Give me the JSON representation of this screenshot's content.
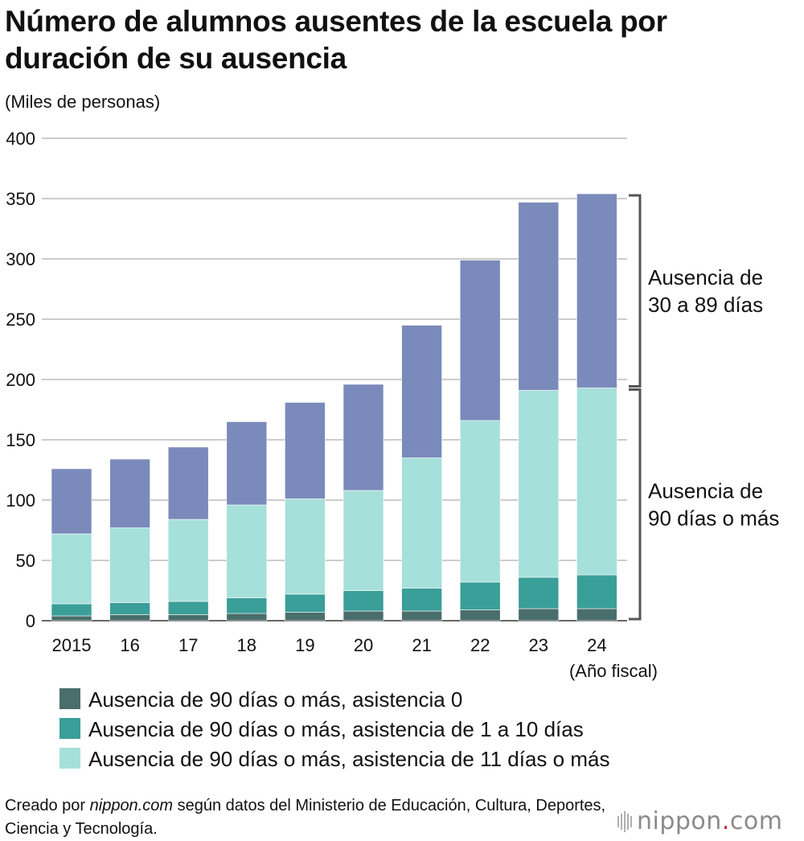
{
  "title": "Número de alumnos ausentes de la escuela por duración de su ausencia",
  "unit_label": "(Miles de personas)",
  "fiscal_year_note": "(Año fiscal)",
  "bracket_labels": {
    "upper": [
      "Ausencia de",
      "30 a 89 días"
    ],
    "lower": [
      "Ausencia de",
      "90 días o más"
    ]
  },
  "source": {
    "prefix": "Creado por",
    "brand": "nippon.com",
    "rest": "según datos del Ministerio de Educación, Cultura, Deportes, Ciencia y Tecnología."
  },
  "logo": {
    "name": "nippon",
    "dot": ".",
    "tld": "com"
  },
  "colors": {
    "zero_attendance": "#4a6e6b",
    "attendance_1_10": "#3a9e99",
    "attendance_11_plus": "#a6e0da",
    "absence_30_89": "#7a8aba",
    "grid": "#cccccc",
    "bracket": "#555555"
  },
  "chart_data": {
    "type": "bar",
    "stacked": true,
    "title": "Número de alumnos ausentes de la escuela por duración de su ausencia",
    "xlabel": "(Año fiscal)",
    "ylabel": "(Miles de personas)",
    "ylim": [
      0,
      400
    ],
    "yticks": [
      0,
      50,
      100,
      150,
      200,
      250,
      300,
      350,
      400
    ],
    "grid": true,
    "categories": [
      "2015",
      "16",
      "17",
      "18",
      "19",
      "20",
      "21",
      "22",
      "23",
      "24"
    ],
    "series": [
      {
        "name": "Ausencia de 90 días o más, asistencia 0",
        "color_key": "zero_attendance",
        "values": [
          4,
          5,
          5,
          6,
          7,
          8,
          8,
          9,
          10,
          10
        ]
      },
      {
        "name": "Ausencia de 90 días o más, asistencia de 1 a 10 días",
        "color_key": "attendance_1_10",
        "values": [
          10,
          10,
          11,
          13,
          15,
          17,
          19,
          23,
          26,
          28
        ]
      },
      {
        "name": "Ausencia de 90 días o más, asistencia de 11 días o más",
        "color_key": "attendance_11_plus",
        "values": [
          58,
          62,
          68,
          77,
          79,
          83,
          108,
          134,
          155,
          155
        ]
      },
      {
        "name": "Ausencia de 30 a 89 días",
        "color_key": "absence_30_89",
        "in_legend": false,
        "values": [
          54,
          57,
          60,
          69,
          80,
          88,
          110,
          133,
          156,
          161
        ]
      }
    ],
    "legend": {
      "position": "bottom-left",
      "entries": [
        "Ausencia de 90 días o más, asistencia 0",
        "Ausencia de 90 días o más, asistencia de 1 a 10 días",
        "Ausencia de 90 días o más, asistencia de 11 días o más"
      ]
    }
  }
}
